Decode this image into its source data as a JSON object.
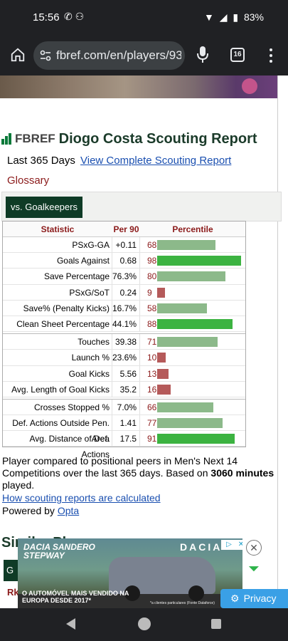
{
  "status": {
    "time": "15:56",
    "battery": "83%"
  },
  "browser": {
    "url": "fbref.com/en/players/93",
    "tab_count": "16"
  },
  "page": {
    "logo": "FBREF",
    "title": "Diogo Costa Scouting Report",
    "period": "Last 365 Days",
    "full_report_link": "View Complete Scouting Report",
    "glossary": "Glossary",
    "filter_button": "vs. Goalkeepers",
    "table": {
      "headers": [
        "Statistic",
        "Per 90",
        "Percentile"
      ],
      "sections": [
        [
          {
            "stat": "PSxG-GA",
            "per90": "+0.11",
            "percentile": 68
          },
          {
            "stat": "Goals Against",
            "per90": "0.68",
            "percentile": 98
          },
          {
            "stat": "Save Percentage",
            "per90": "76.3%",
            "percentile": 80
          },
          {
            "stat": "PSxG/SoT",
            "per90": "0.24",
            "percentile": 9
          },
          {
            "stat": "Save% (Penalty Kicks)",
            "per90": "16.7%",
            "percentile": 58
          },
          {
            "stat": "Clean Sheet Percentage",
            "per90": "44.1%",
            "percentile": 88
          }
        ],
        [
          {
            "stat": "Touches",
            "per90": "39.38",
            "percentile": 71
          },
          {
            "stat": "Launch %",
            "per90": "23.6%",
            "percentile": 10
          },
          {
            "stat": "Goal Kicks",
            "per90": "5.56",
            "percentile": 13
          },
          {
            "stat": "Avg. Length of Goal Kicks",
            "per90": "35.2",
            "percentile": 16
          }
        ],
        [
          {
            "stat": "Crosses Stopped %",
            "per90": "7.0%",
            "percentile": 66
          },
          {
            "stat": "Def. Actions Outside Pen. Area",
            "per90": "1.41",
            "percentile": 77
          },
          {
            "stat": "Avg. Distance of Def. Actions",
            "per90": "17.5",
            "percentile": 91
          }
        ]
      ]
    },
    "note_part1": "Player compared to positional peers in Men's Next 14 Competitions over the last 365 days. Based on ",
    "note_minutes": "3060 minutes",
    "note_part2": " played.",
    "how_link": "How scouting reports are calculated",
    "powered_by": "Powered by ",
    "opta": "Opta",
    "similar_heading": "Similar Players",
    "similar_fragment": "G",
    "rk_fragment": "Rk"
  },
  "ad": {
    "headline": "DACIA SANDERO STEPWAY",
    "brand": "DACIA",
    "slogan": "O AUTOMÓVEL MAIS VENDIDO NA EUROPA DESDE 2017*",
    "fine_print": "*a clientes particulares (Fonte Dataforce)"
  },
  "privacy": "Privacy",
  "colors": {
    "bar_high": "#3cb341",
    "bar_mid": "#8cb98a",
    "bar_low": "#b55a5a",
    "accent": "#0f3b26"
  }
}
